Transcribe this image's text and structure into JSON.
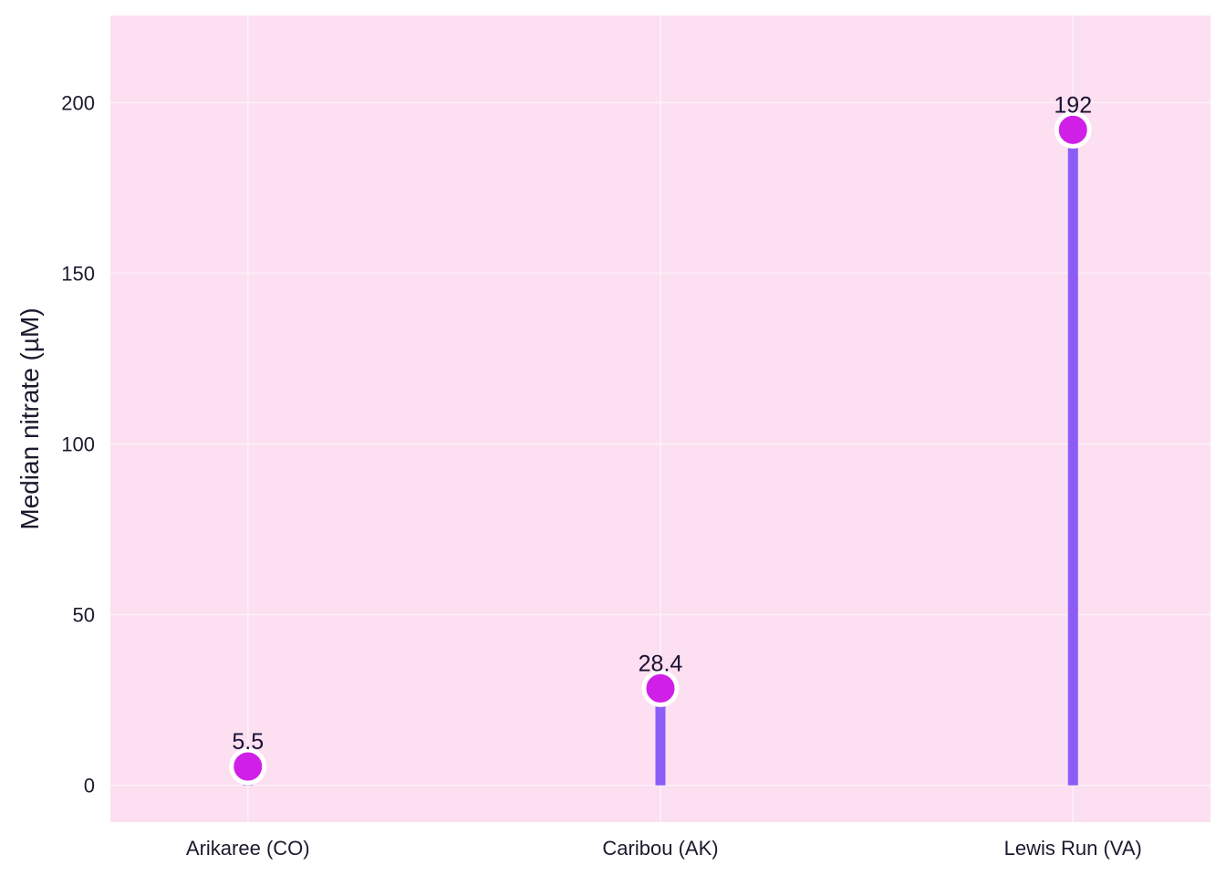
{
  "chart_data": {
    "type": "lollipop",
    "categories": [
      "Arikaree (CO)",
      "Caribou (AK)",
      "Lewis Run (VA)"
    ],
    "values": [
      5.5,
      28.4,
      192
    ],
    "value_labels": [
      "5.5",
      "28.4",
      "192"
    ],
    "title": "",
    "xlabel": "",
    "ylabel": "Median nitrate (µM)",
    "ylim": [
      -10.8,
      225.5
    ],
    "yticks": [
      0,
      50,
      100,
      150,
      200
    ],
    "ytick_labels": [
      "0",
      "50",
      "100",
      "150",
      "200"
    ],
    "grid": true,
    "legend": "none",
    "colors": {
      "panel_background": "#fcdff0",
      "grid": "#fbeef7",
      "stem": "#8b5cf6",
      "marker_fill": "#d020e8",
      "marker_edge": "#ffffff",
      "text": "#1a1a2e"
    }
  }
}
